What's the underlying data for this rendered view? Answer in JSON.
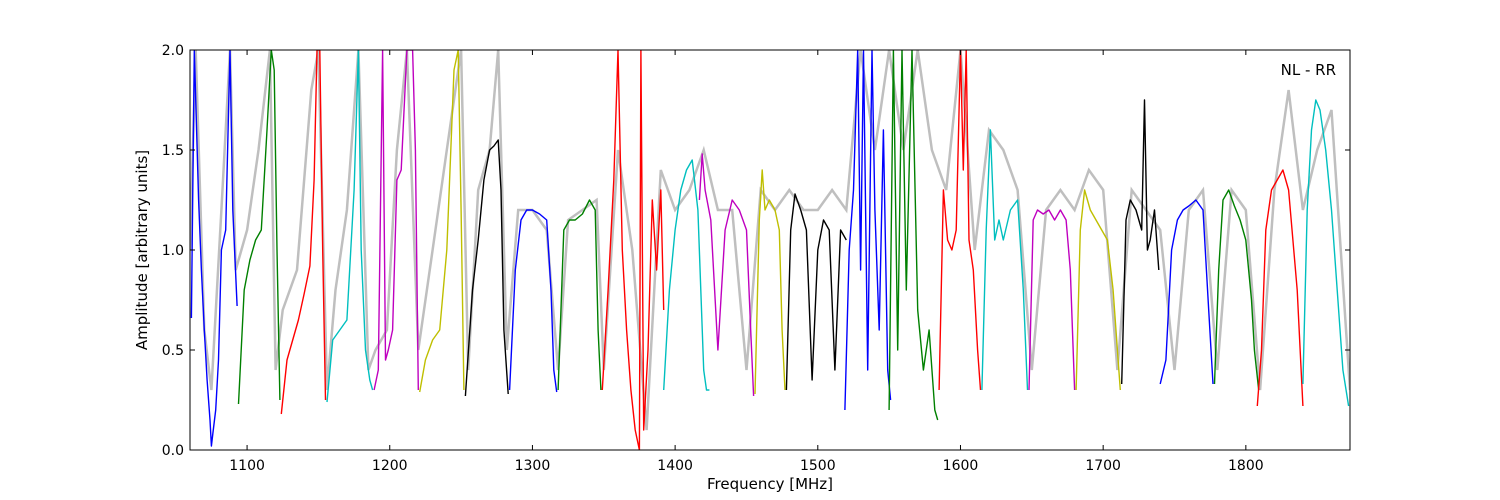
{
  "chart_data": {
    "type": "line",
    "annotation": "NL - RR",
    "xlabel": "Frequency [MHz]",
    "ylabel": "Amplitude [arbitrary units]",
    "xlim": [
      1060,
      1873
    ],
    "ylim": [
      0.0,
      2.0
    ],
    "x_ticks": [
      1100,
      1200,
      1300,
      1400,
      1500,
      1600,
      1700,
      1800
    ],
    "y_ticks": [
      0.0,
      0.5,
      1.0,
      1.5,
      2.0
    ],
    "x_tick_labels": [
      "1100",
      "1200",
      "1300",
      "1400",
      "1500",
      "1600",
      "1700",
      "1800"
    ],
    "y_tick_labels": [
      "0.0",
      "0.5",
      "1.0",
      "1.5",
      "2.0"
    ],
    "grid": false,
    "background_series": {
      "color": "#bfbfbf",
      "x": [
        1060,
        1064,
        1070,
        1075,
        1082,
        1088,
        1092,
        1100,
        1108,
        1116,
        1120,
        1125,
        1135,
        1145,
        1150,
        1156,
        1162,
        1170,
        1178,
        1185,
        1190,
        1198,
        1205,
        1212,
        1220,
        1230,
        1240,
        1250,
        1255,
        1262,
        1270,
        1276,
        1282,
        1290,
        1300,
        1310,
        1318,
        1325,
        1335,
        1345,
        1350,
        1360,
        1370,
        1380,
        1390,
        1400,
        1410,
        1420,
        1430,
        1440,
        1450,
        1460,
        1470,
        1480,
        1490,
        1500,
        1510,
        1520,
        1530,
        1540,
        1550,
        1560,
        1570,
        1580,
        1590,
        1600,
        1610,
        1620,
        1630,
        1640,
        1650,
        1660,
        1670,
        1680,
        1690,
        1700,
        1710,
        1720,
        1730,
        1740,
        1750,
        1760,
        1770,
        1780,
        1790,
        1800,
        1810,
        1820,
        1830,
        1840,
        1850,
        1860,
        1873
      ],
      "y": [
        1.0,
        2.0,
        0.6,
        0.3,
        1.2,
        2.0,
        0.9,
        1.1,
        1.5,
        2.0,
        0.4,
        0.7,
        0.9,
        1.8,
        2.0,
        0.3,
        0.8,
        1.2,
        2.0,
        0.4,
        0.5,
        0.6,
        1.5,
        2.0,
        0.5,
        1.0,
        1.5,
        2.0,
        0.4,
        1.3,
        1.5,
        2.0,
        0.5,
        1.2,
        1.2,
        1.1,
        0.4,
        1.15,
        1.2,
        1.25,
        0.4,
        1.5,
        1.0,
        0.1,
        1.4,
        1.2,
        1.3,
        1.5,
        1.2,
        1.2,
        0.4,
        1.3,
        1.2,
        1.3,
        1.2,
        1.2,
        1.3,
        1.2,
        2.0,
        1.5,
        2.0,
        1.5,
        2.0,
        1.5,
        1.3,
        2.0,
        1.0,
        1.6,
        1.5,
        1.3,
        0.4,
        1.2,
        1.3,
        1.2,
        1.4,
        1.3,
        0.4,
        1.3,
        1.2,
        1.1,
        0.4,
        1.2,
        1.3,
        0.4,
        1.3,
        1.2,
        0.3,
        1.3,
        1.8,
        1.2,
        1.5,
        1.7,
        0.3
      ]
    },
    "series": [
      {
        "color": "#0000ff",
        "x": [
          1061,
          1063,
          1066,
          1068,
          1070,
          1072,
          1074,
          1075,
          1076,
          1078,
          1080,
          1082,
          1085,
          1088,
          1090,
          1093
        ],
        "y": [
          0.66,
          2.0,
          1.25,
          0.9,
          0.6,
          0.35,
          0.15,
          0.02,
          0.08,
          0.2,
          0.45,
          1.0,
          1.1,
          2.0,
          1.2,
          0.72
        ]
      },
      {
        "color": "#008000",
        "x": [
          1094,
          1098,
          1102,
          1106,
          1110,
          1114,
          1117,
          1119,
          1121,
          1123
        ],
        "y": [
          0.23,
          0.8,
          0.95,
          1.05,
          1.1,
          1.6,
          2.0,
          1.9,
          1.0,
          0.25
        ]
      },
      {
        "color": "#ff0000",
        "x": [
          1124,
          1128,
          1132,
          1136,
          1140,
          1144,
          1147,
          1149,
          1151,
          1153,
          1155
        ],
        "y": [
          0.18,
          0.45,
          0.55,
          0.65,
          0.78,
          0.92,
          1.35,
          2.0,
          2.0,
          1.0,
          0.25
        ]
      },
      {
        "color": "#00bfbf",
        "x": [
          1156,
          1160,
          1165,
          1170,
          1175,
          1178,
          1180,
          1183,
          1186,
          1188
        ],
        "y": [
          0.24,
          0.55,
          0.6,
          0.65,
          1.3,
          2.0,
          1.0,
          0.5,
          0.35,
          0.3
        ]
      },
      {
        "color": "#bf00bf",
        "x": [
          1189,
          1192,
          1195,
          1197,
          1199,
          1202,
          1205,
          1208,
          1212,
          1216,
          1218,
          1220
        ],
        "y": [
          0.3,
          0.4,
          2.0,
          0.45,
          0.5,
          0.6,
          1.35,
          1.4,
          2.0,
          2.0,
          1.5,
          0.3
        ]
      },
      {
        "color": "#bfbf00",
        "x": [
          1221,
          1225,
          1230,
          1235,
          1240,
          1245,
          1248,
          1250,
          1252
        ],
        "y": [
          0.29,
          0.45,
          0.55,
          0.6,
          1.0,
          1.9,
          2.0,
          1.2,
          0.3
        ]
      },
      {
        "color": "#000000",
        "x": [
          1253,
          1258,
          1262,
          1266,
          1270,
          1273,
          1276,
          1278,
          1280,
          1283
        ],
        "y": [
          0.27,
          0.8,
          1.05,
          1.35,
          1.5,
          1.52,
          1.55,
          1.3,
          0.6,
          0.28
        ]
      },
      {
        "color": "#0000ff",
        "x": [
          1284,
          1288,
          1292,
          1296,
          1300,
          1305,
          1310,
          1313,
          1315,
          1317
        ],
        "y": [
          0.3,
          0.9,
          1.15,
          1.2,
          1.2,
          1.18,
          1.15,
          0.8,
          0.4,
          0.29
        ]
      },
      {
        "color": "#008000",
        "x": [
          1318,
          1322,
          1326,
          1330,
          1335,
          1340,
          1344,
          1346,
          1348
        ],
        "y": [
          0.3,
          1.1,
          1.15,
          1.15,
          1.18,
          1.25,
          1.2,
          0.6,
          0.3
        ]
      },
      {
        "color": "#ff0000",
        "x": [
          1349,
          1353,
          1357,
          1360,
          1363,
          1366,
          1369,
          1372,
          1375,
          1376,
          1378,
          1381,
          1384,
          1387,
          1390,
          1392
        ],
        "y": [
          0.3,
          0.8,
          1.35,
          2.0,
          1.0,
          0.6,
          0.3,
          0.1,
          0.0,
          2.0,
          0.1,
          0.5,
          1.25,
          0.9,
          1.3,
          0.7
        ]
      },
      {
        "color": "#00bfbf",
        "x": [
          1392,
          1396,
          1400,
          1404,
          1408,
          1412,
          1416,
          1418,
          1420,
          1422,
          1424
        ],
        "y": [
          0.3,
          0.8,
          1.1,
          1.3,
          1.4,
          1.45,
          1.2,
          0.8,
          0.4,
          0.3,
          0.3
        ]
      },
      {
        "color": "#bf00bf",
        "x": [
          1417,
          1419,
          1421,
          1425,
          1430,
          1435,
          1440,
          1445,
          1450,
          1453,
          1455
        ],
        "y": [
          1.25,
          1.48,
          1.3,
          1.15,
          0.5,
          1.1,
          1.25,
          1.2,
          1.1,
          0.6,
          0.27
        ]
      },
      {
        "color": "#bfbf00",
        "x": [
          1456,
          1459,
          1461,
          1463,
          1466,
          1470,
          1473,
          1475,
          1477
        ],
        "y": [
          0.28,
          1.15,
          1.4,
          1.2,
          1.25,
          1.2,
          1.1,
          0.6,
          0.3
        ]
      },
      {
        "color": "#000000",
        "x": [
          1478,
          1481,
          1484,
          1488,
          1492,
          1496,
          1500,
          1504,
          1508,
          1512,
          1516,
          1520
        ],
        "y": [
          0.3,
          1.1,
          1.28,
          1.2,
          1.1,
          0.35,
          1.0,
          1.15,
          1.1,
          0.4,
          1.1,
          1.05
        ]
      },
      {
        "color": "#0000ff",
        "x": [
          1519,
          1522,
          1525,
          1528,
          1530,
          1532,
          1535,
          1538,
          1540,
          1543,
          1546,
          1549,
          1551
        ],
        "y": [
          0.2,
          1.0,
          1.3,
          2.0,
          0.9,
          2.0,
          0.4,
          2.0,
          1.2,
          0.6,
          1.6,
          0.4,
          0.25
        ]
      },
      {
        "color": "#008000",
        "x": [
          1550,
          1553,
          1556,
          1559,
          1562,
          1566,
          1570,
          1574,
          1578,
          1582,
          1584
        ],
        "y": [
          0.2,
          2.0,
          0.5,
          2.0,
          0.8,
          2.0,
          0.7,
          0.4,
          0.6,
          0.2,
          0.15
        ]
      },
      {
        "color": "#ff0000",
        "x": [
          1585,
          1588,
          1591,
          1594,
          1597,
          1600,
          1602,
          1604,
          1606,
          1609,
          1612,
          1614
        ],
        "y": [
          0.3,
          1.3,
          1.05,
          1.0,
          1.1,
          2.0,
          1.4,
          2.0,
          1.05,
          0.9,
          0.5,
          0.3
        ]
      },
      {
        "color": "#00bfbf",
        "x": [
          1615,
          1618,
          1621,
          1624,
          1627,
          1630,
          1635,
          1640,
          1644,
          1647
        ],
        "y": [
          0.3,
          1.1,
          1.6,
          1.05,
          1.15,
          1.05,
          1.2,
          1.25,
          0.8,
          0.3
        ]
      },
      {
        "color": "#bf00bf",
        "x": [
          1648,
          1651,
          1654,
          1658,
          1662,
          1666,
          1670,
          1674,
          1677,
          1680
        ],
        "y": [
          0.3,
          1.15,
          1.2,
          1.18,
          1.2,
          1.15,
          1.2,
          1.15,
          0.9,
          0.3
        ]
      },
      {
        "color": "#bfbf00",
        "x": [
          1681,
          1684,
          1687,
          1691,
          1695,
          1699,
          1703,
          1707,
          1710,
          1712
        ],
        "y": [
          0.3,
          1.1,
          1.3,
          1.2,
          1.15,
          1.1,
          1.05,
          0.8,
          0.5,
          0.3
        ]
      },
      {
        "color": "#000000",
        "x": [
          1713,
          1716,
          1719,
          1723,
          1727,
          1729,
          1731,
          1733,
          1736,
          1739
        ],
        "y": [
          0.33,
          1.15,
          1.25,
          1.2,
          1.1,
          1.75,
          1.0,
          1.05,
          1.2,
          0.9
        ]
      },
      {
        "color": "#0000ff",
        "x": [
          1740,
          1744,
          1748,
          1752,
          1756,
          1760,
          1765,
          1770,
          1774,
          1777
        ],
        "y": [
          0.33,
          0.45,
          1.0,
          1.15,
          1.2,
          1.22,
          1.25,
          1.2,
          0.7,
          0.33
        ]
      },
      {
        "color": "#008000",
        "x": [
          1778,
          1781,
          1784,
          1788,
          1792,
          1796,
          1800,
          1804,
          1806,
          1809
        ],
        "y": [
          0.33,
          0.9,
          1.25,
          1.3,
          1.22,
          1.15,
          1.05,
          0.75,
          0.5,
          0.3
        ]
      },
      {
        "color": "#ff0000",
        "x": [
          1808,
          1811,
          1814,
          1818,
          1822,
          1826,
          1830,
          1833,
          1836,
          1840
        ],
        "y": [
          0.22,
          0.5,
          1.1,
          1.3,
          1.35,
          1.4,
          1.3,
          1.05,
          0.8,
          0.22
        ]
      },
      {
        "color": "#00bfbf",
        "x": [
          1840,
          1843,
          1846,
          1849,
          1852,
          1856,
          1860,
          1864,
          1868,
          1872
        ],
        "y": [
          0.33,
          1.2,
          1.6,
          1.75,
          1.7,
          1.5,
          1.2,
          0.8,
          0.4,
          0.22
        ]
      }
    ]
  }
}
